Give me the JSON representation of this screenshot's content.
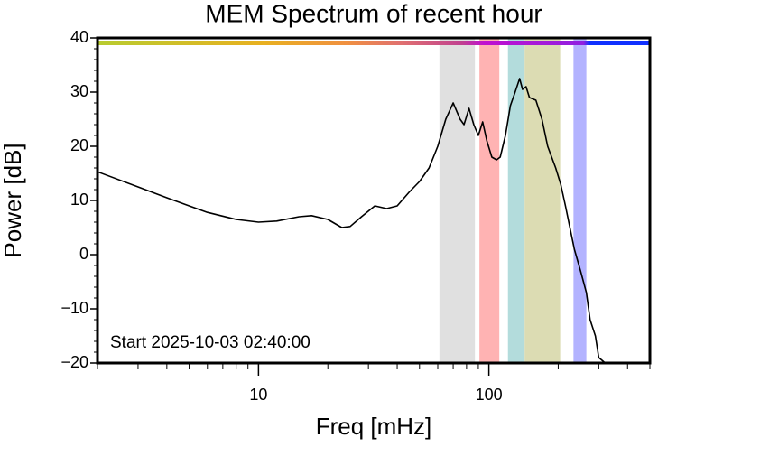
{
  "chart_data": {
    "type": "line",
    "title": "MEM Spectrum of recent hour",
    "xlabel": "Freq [mHz]",
    "ylabel": "Power [dB]",
    "annotation": "Start 2025-10-03 02:40:00",
    "xscale": "log",
    "xlim": [
      2,
      500
    ],
    "ylim": [
      -20,
      40
    ],
    "xticks": [
      10,
      100
    ],
    "xminorticks": [
      2,
      3,
      4,
      5,
      6,
      7,
      8,
      9,
      20,
      30,
      40,
      50,
      60,
      70,
      80,
      90,
      200,
      300,
      400,
      500
    ],
    "yticks": [
      {
        "value": -20,
        "label": "−20"
      },
      {
        "value": -10,
        "label": "−10"
      },
      0,
      10,
      20,
      30,
      40
    ],
    "yminorticks": [
      -18,
      -16,
      -14,
      -12,
      -8,
      -6,
      -4,
      -2,
      2,
      4,
      6,
      8,
      12,
      14,
      16,
      18,
      22,
      24,
      26,
      28,
      32,
      34,
      36,
      38
    ],
    "color": "#000000",
    "x": [
      2,
      3,
      4,
      5,
      6,
      8,
      10,
      12,
      15,
      17,
      20,
      23,
      25,
      28,
      32,
      36,
      40,
      45,
      50,
      55,
      60,
      65,
      70,
      75,
      78,
      82,
      86,
      90,
      94,
      98,
      103,
      108,
      112,
      118,
      124,
      130,
      136,
      140,
      145,
      150,
      160,
      170,
      180,
      195,
      205,
      215,
      235,
      250,
      265,
      275,
      290,
      300,
      320
    ],
    "values": [
      15.3,
      12.5,
      10.5,
      9,
      7.8,
      6.5,
      6,
      6.2,
      7,
      7.2,
      6.5,
      5,
      5.2,
      7,
      9,
      8.5,
      9,
      11.5,
      13.5,
      16,
      20,
      25,
      28,
      25,
      24,
      27,
      24,
      22,
      24.5,
      21,
      18,
      17.5,
      18,
      22,
      27.5,
      30,
      32.5,
      30.5,
      31,
      29,
      28.5,
      25,
      20,
      16,
      13,
      9,
      1,
      -3,
      -7,
      -12,
      -15,
      -19,
      -20
    ],
    "bands": [
      {
        "x": [
          61,
          87
        ],
        "color": "#e0e0e0"
      },
      {
        "x": [
          91,
          111
        ],
        "color": "#ffb3b3"
      },
      {
        "x": [
          121,
          143
        ],
        "color": "#b3dcdc"
      },
      {
        "x": [
          143,
          204
        ],
        "color": "#dcdcb3"
      },
      {
        "x": [
          233,
          265
        ],
        "color": "#b3b3ff"
      }
    ]
  }
}
